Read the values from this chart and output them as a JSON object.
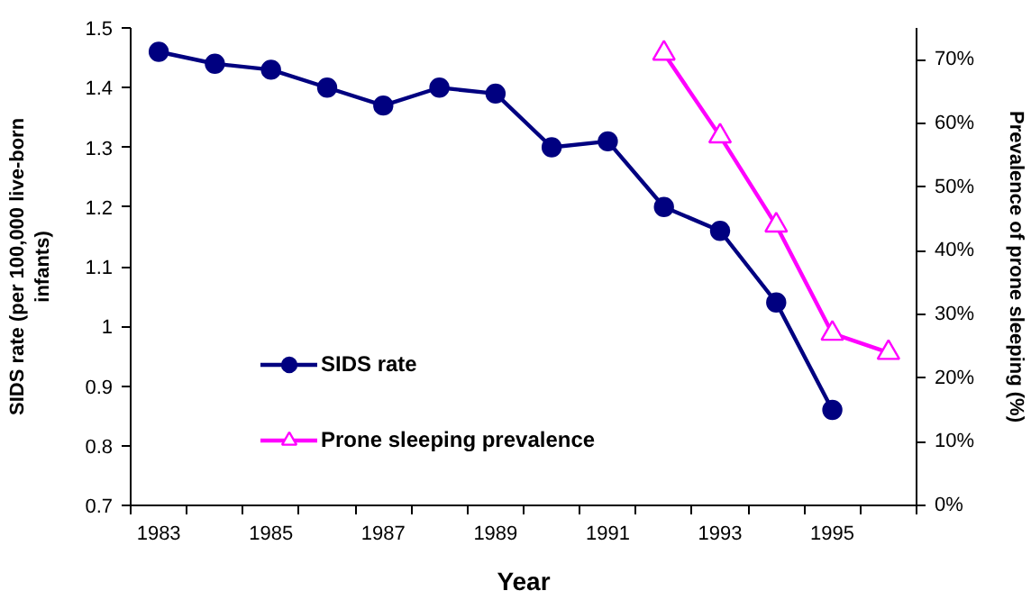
{
  "chart_data": {
    "type": "line",
    "categories": [
      "1983",
      null,
      "1985",
      null,
      "1987",
      null,
      "1989",
      null,
      "1991",
      null,
      "1993",
      null,
      "1995",
      null
    ],
    "xlabel": "Year",
    "ylabel": "SIDS rate (per 100,000 live-born infants)",
    "y2label": "Prevalence of prone sleeping (%)",
    "ylim": [
      0.7,
      1.5
    ],
    "yticks": [
      0.7,
      0.8,
      0.9,
      1,
      1.1,
      1.2,
      1.3,
      1.4,
      1.5
    ],
    "y2lim": [
      0,
      75
    ],
    "y2ticks": [
      {
        "value": 0,
        "label": "0%"
      },
      {
        "value": 10,
        "label": "10%"
      },
      {
        "value": 20,
        "label": "20%"
      },
      {
        "value": 30,
        "label": "30%"
      },
      {
        "value": 40,
        "label": "40%"
      },
      {
        "value": 50,
        "label": "50%"
      },
      {
        "value": 60,
        "label": "60%"
      },
      {
        "value": 70,
        "label": "70%"
      }
    ],
    "series": [
      {
        "name": "SIDS rate",
        "color": "#000080",
        "marker": "circle",
        "values": [
          1.46,
          1.44,
          1.43,
          1.4,
          1.37,
          1.4,
          1.39,
          1.3,
          1.31,
          1.2,
          1.16,
          1.04,
          0.86,
          null
        ]
      },
      {
        "name": "Prone sleeping prevalence",
        "color": "#ff00ff",
        "marker": "triangle",
        "axis": "y2",
        "values": [
          null,
          null,
          null,
          null,
          null,
          null,
          null,
          null,
          null,
          71,
          58,
          44,
          27,
          24
        ]
      }
    ],
    "grid": false,
    "legend": "bottom left"
  }
}
